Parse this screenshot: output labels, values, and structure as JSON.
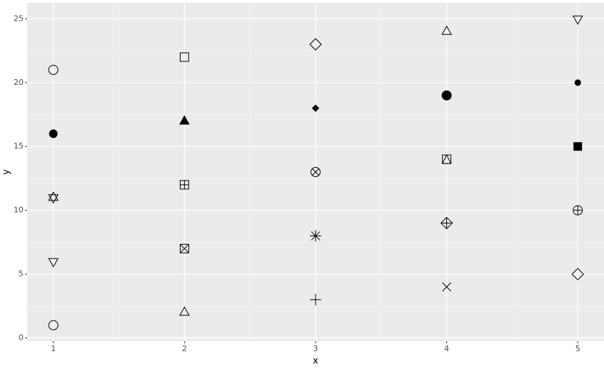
{
  "chart_data": {
    "type": "scatter",
    "x_label": "x",
    "y_label": "y",
    "x": [
      1,
      2,
      3,
      4,
      5,
      1,
      2,
      3,
      4,
      5,
      1,
      2,
      3,
      4,
      5,
      1,
      2,
      3,
      4,
      5,
      1,
      2,
      3,
      4,
      5
    ],
    "y": [
      1,
      2,
      3,
      4,
      5,
      6,
      7,
      8,
      9,
      10,
      11,
      12,
      13,
      14,
      15,
      16,
      17,
      18,
      19,
      20,
      21,
      22,
      23,
      24,
      25
    ],
    "markers": [
      "circle-open",
      "triangle-open",
      "plus",
      "cross",
      "diamond-open",
      "triangle-down-open",
      "square-cross",
      "asterisk",
      "diamond-plus",
      "circle-plus",
      "triangles-up-down",
      "square-plus",
      "circle-cross",
      "square-triangle",
      "square-filled",
      "circle-filled",
      "triangle-filled",
      "diamond-filled-small",
      "circle-solid",
      "circle-small",
      "circle-open",
      "square-open",
      "diamond-open",
      "triangle-open",
      "triangle-down-open"
    ],
    "color": "#000000",
    "xlim": [
      0.8,
      5.2
    ],
    "xticks": [
      1,
      2,
      3,
      4,
      5
    ],
    "ylim": [
      -0.25,
      26.25
    ],
    "yticks": [
      0,
      5,
      10,
      15,
      20,
      25
    ],
    "grid": true
  }
}
